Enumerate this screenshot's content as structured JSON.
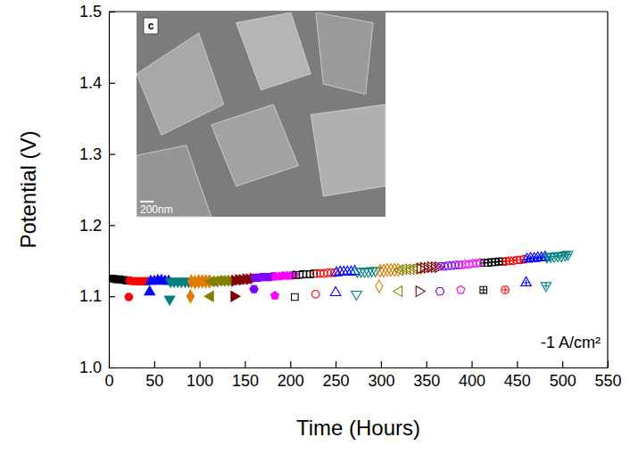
{
  "chart_data": {
    "type": "scatter",
    "xlabel": "Time (Hours)",
    "ylabel": "Potential (V)",
    "annotation": "-1 A/cm²",
    "inset": {
      "label": "c",
      "scale_bar": "200nm"
    },
    "xlim": [
      0,
      550
    ],
    "xticks": [
      0,
      50,
      100,
      150,
      200,
      250,
      300,
      350,
      400,
      450,
      500,
      550
    ],
    "ylim": [
      1.0,
      1.5
    ],
    "yticks": [
      {
        "value": 1.0,
        "label": "1.0"
      },
      1.1,
      1.2,
      1.3,
      1.4,
      1.5
    ],
    "grid": false,
    "series": [
      {
        "color": "#000000",
        "marker": "square",
        "x": [
          0,
          4,
          8,
          12,
          16,
          20
        ],
        "values": [
          1.125,
          1.125,
          1.124,
          1.124,
          1.123,
          1.122
        ]
      },
      {
        "color": "#ff0000",
        "marker": "circle",
        "x": [
          22,
          23,
          27,
          31,
          35,
          39,
          43
        ],
        "values": [
          1.099,
          1.122,
          1.121,
          1.121,
          1.121,
          1.121,
          1.121
        ]
      },
      {
        "color": "#0000ff",
        "marker": "triangle-up",
        "x": [
          45,
          46,
          50,
          54,
          58,
          62,
          66
        ],
        "values": [
          1.106,
          1.121,
          1.121,
          1.122,
          1.122,
          1.121,
          1.121
        ]
      },
      {
        "color": "#008080",
        "marker": "triangle-down",
        "x": [
          67,
          68,
          72,
          76,
          80,
          84,
          88
        ],
        "values": [
          1.096,
          1.121,
          1.121,
          1.121,
          1.121,
          1.121,
          1.121
        ]
      },
      {
        "color": "#e07b00",
        "marker": "diamond",
        "x": [
          90,
          91,
          95,
          99,
          103,
          107,
          111
        ],
        "values": [
          1.1,
          1.121,
          1.12,
          1.121,
          1.121,
          1.121,
          1.121
        ]
      },
      {
        "color": "#808000",
        "marker": "triangle-left",
        "x": [
          112,
          113,
          117,
          121,
          125,
          129,
          133
        ],
        "values": [
          1.1,
          1.121,
          1.121,
          1.122,
          1.122,
          1.122,
          1.122
        ]
      },
      {
        "color": "#800000",
        "marker": "triangle-right",
        "x": [
          138,
          139,
          143,
          147,
          151,
          155,
          159
        ],
        "values": [
          1.1,
          1.122,
          1.123,
          1.123,
          1.124,
          1.124,
          1.125
        ]
      },
      {
        "color": "#8000ff",
        "marker": "hexagon",
        "x": [
          160,
          161,
          165,
          169,
          173,
          177,
          181
        ],
        "values": [
          1.11,
          1.126,
          1.126,
          1.127,
          1.127,
          1.127,
          1.128
        ]
      },
      {
        "color": "#ff00ff",
        "marker": "pentagon",
        "x": [
          183,
          184,
          188,
          192,
          196,
          200,
          204
        ],
        "values": [
          1.101,
          1.128,
          1.128,
          1.129,
          1.129,
          1.129,
          1.13
        ]
      },
      {
        "color": "#000000",
        "marker": "square-open",
        "x": [
          205,
          206,
          210,
          214,
          218,
          222,
          226
        ],
        "values": [
          1.099,
          1.13,
          1.13,
          1.131,
          1.131,
          1.131,
          1.132
        ]
      },
      {
        "color": "#ff0000",
        "marker": "circle-open",
        "x": [
          228,
          229,
          233,
          237,
          241,
          245,
          249
        ],
        "values": [
          1.103,
          1.132,
          1.132,
          1.132,
          1.133,
          1.133,
          1.133
        ]
      },
      {
        "color": "#0000ff",
        "marker": "triangle-up-open",
        "x": [
          250,
          251,
          255,
          259,
          263,
          267,
          271
        ],
        "values": [
          1.105,
          1.133,
          1.134,
          1.134,
          1.134,
          1.134,
          1.135
        ]
      },
      {
        "color": "#008080",
        "marker": "triangle-down-open",
        "x": [
          273,
          274,
          278,
          282,
          286,
          290,
          294
        ],
        "values": [
          1.103,
          1.135,
          1.135,
          1.135,
          1.135,
          1.136,
          1.136
        ]
      },
      {
        "color": "#e07b00",
        "marker": "diamond-open",
        "x": [
          298,
          299,
          303,
          307,
          311,
          315,
          319
        ],
        "values": [
          1.114,
          1.136,
          1.136,
          1.137,
          1.137,
          1.137,
          1.137
        ]
      },
      {
        "color": "#808000",
        "marker": "triangle-left-open",
        "x": [
          320,
          321,
          325,
          329,
          333,
          337,
          341
        ],
        "values": [
          1.107,
          1.137,
          1.138,
          1.138,
          1.138,
          1.139,
          1.139
        ]
      },
      {
        "color": "#800000",
        "marker": "triangle-right-open",
        "x": [
          342,
          343,
          347,
          351,
          355,
          359,
          363
        ],
        "values": [
          1.107,
          1.139,
          1.14,
          1.14,
          1.141,
          1.141,
          1.141
        ]
      },
      {
        "color": "#8000ff",
        "marker": "hexagon-open",
        "x": [
          365,
          366,
          370,
          374,
          378,
          382,
          386
        ],
        "values": [
          1.107,
          1.142,
          1.142,
          1.143,
          1.143,
          1.144,
          1.144
        ]
      },
      {
        "color": "#ff00ff",
        "marker": "pentagon-open",
        "x": [
          388,
          389,
          393,
          397,
          401,
          405,
          409
        ],
        "values": [
          1.109,
          1.144,
          1.145,
          1.145,
          1.146,
          1.146,
          1.147
        ]
      },
      {
        "color": "#000000",
        "marker": "square-cross",
        "x": [
          413,
          414,
          418,
          422,
          426,
          430,
          434
        ],
        "values": [
          1.109,
          1.147,
          1.147,
          1.148,
          1.148,
          1.149,
          1.149
        ]
      },
      {
        "color": "#ff0000",
        "marker": "circle-cross",
        "x": [
          437,
          438,
          442,
          446,
          450,
          454,
          458
        ],
        "values": [
          1.109,
          1.149,
          1.15,
          1.15,
          1.151,
          1.151,
          1.152
        ]
      },
      {
        "color": "#0000ff",
        "marker": "triangle-up-cross",
        "x": [
          460,
          461,
          465,
          469,
          473,
          477,
          481
        ],
        "values": [
          1.119,
          1.152,
          1.153,
          1.153,
          1.154,
          1.154,
          1.155
        ]
      },
      {
        "color": "#008080",
        "marker": "triangle-down-cross",
        "x": [
          482,
          483,
          487,
          491,
          495,
          499,
          503,
          506
        ],
        "values": [
          1.115,
          1.155,
          1.156,
          1.156,
          1.157,
          1.157,
          1.158,
          1.159
        ]
      }
    ]
  }
}
